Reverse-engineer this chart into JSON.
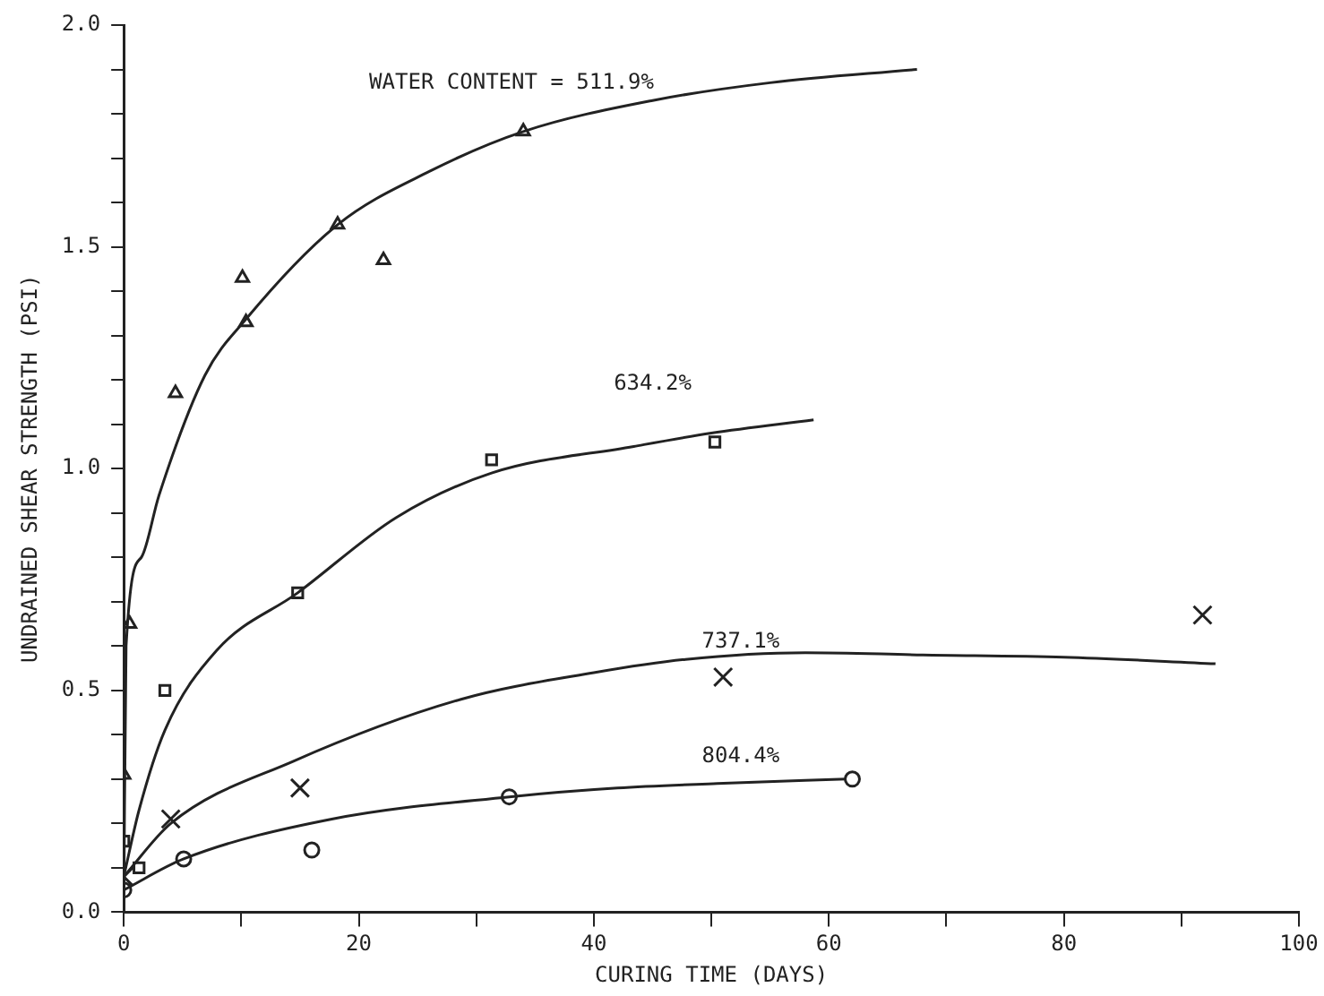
{
  "chart_data": {
    "type": "scatter",
    "xlabel": "CURING TIME (DAYS)",
    "ylabel": "UNDRAINED SHEAR STRENGTH (PSI)",
    "xlim": [
      0,
      100
    ],
    "ylim": [
      0,
      2.0
    ],
    "xticks": [
      0,
      {
        "value": 10,
        "label": null
      },
      20,
      {
        "value": 30,
        "label": null
      },
      40,
      {
        "value": 50,
        "label": null
      },
      60,
      {
        "value": 70,
        "label": null
      },
      80,
      {
        "value": 90,
        "label": null
      },
      100
    ],
    "yticks": [
      {
        "value": 0,
        "label": "0.0"
      },
      {
        "value": 0.1,
        "label": null
      },
      {
        "value": 0.2,
        "label": null
      },
      {
        "value": 0.3,
        "label": null
      },
      {
        "value": 0.4,
        "label": null
      },
      0.5,
      {
        "value": 0.6,
        "label": null
      },
      {
        "value": 0.7,
        "label": null
      },
      {
        "value": 0.8,
        "label": null
      },
      {
        "value": 0.9,
        "label": null
      },
      {
        "value": 1,
        "label": "1.0"
      },
      {
        "value": 1.1,
        "label": null
      },
      {
        "value": 1.2,
        "label": null
      },
      {
        "value": 1.3,
        "label": null
      },
      {
        "value": 1.4,
        "label": null
      },
      1.5,
      {
        "value": 1.6,
        "label": null
      },
      {
        "value": 1.7,
        "label": null
      },
      {
        "value": 1.8,
        "label": null
      },
      {
        "value": 1.9,
        "label": null
      },
      {
        "value": 2,
        "label": "2.0"
      }
    ],
    "grid": false,
    "legend": false,
    "series": [
      {
        "marker": "triangle",
        "color": "#222222",
        "x": [
          0,
          0.5,
          4.4,
          10.1,
          10.4,
          18.2,
          22.1,
          34.0
        ],
        "values": [
          0.31,
          0.65,
          1.17,
          1.43,
          1.33,
          1.55,
          1.47,
          1.76
        ]
      },
      {
        "marker": "square",
        "color": "#222222",
        "x": [
          0,
          1.3,
          3.5,
          14.8,
          31.3,
          50.3
        ],
        "values": [
          0.16,
          0.1,
          0.5,
          0.72,
          1.02,
          1.06
        ]
      },
      {
        "marker": "cross",
        "color": "#222222",
        "x": [
          0,
          4.0,
          15.0,
          51.0,
          91.8
        ],
        "values": [
          0.08,
          0.21,
          0.28,
          0.53,
          0.67
        ]
      },
      {
        "marker": "circle",
        "color": "#222222",
        "x": [
          0,
          5.1,
          16.0,
          32.8,
          62.0
        ],
        "values": [
          0.05,
          0.12,
          0.14,
          0.26,
          0.3
        ]
      },
      {
        "type": "line",
        "name": "WATER CONTENT = 511.9%",
        "line_style": "solid",
        "color": "#222222",
        "x": [
          0,
          0.2,
          1.5,
          3.0,
          6.9,
          10.5,
          18.2,
          26,
          34.0,
          45,
          55,
          67.5
        ],
        "values": [
          0,
          0.6,
          0.8,
          0.94,
          1.21,
          1.34,
          1.55,
          1.67,
          1.76,
          1.83,
          1.87,
          1.9
        ]
      },
      {
        "type": "line",
        "name": "634.2%",
        "line_style": "solid",
        "color": "#222222",
        "x": [
          0,
          1.3,
          3.5,
          7.9,
          14.8,
          23.2,
          31.3,
          43.4,
          50,
          58.7
        ],
        "values": [
          0.08,
          0.23,
          0.41,
          0.59,
          0.72,
          0.89,
          0.99,
          1.05,
          1.08,
          1.11
        ]
      },
      {
        "type": "line",
        "name": "737.1%",
        "line_style": "solid",
        "color": "#222222",
        "x": [
          0,
          4.0,
          14.4,
          28.7,
          40,
          47.8,
          58,
          68,
          80,
          92.9
        ],
        "values": [
          0.08,
          0.2,
          0.34,
          0.48,
          0.54,
          0.57,
          0.585,
          0.58,
          0.575,
          0.56
        ]
      },
      {
        "type": "line",
        "name": "804.4%",
        "line_style": "solid",
        "color": "#222222",
        "x": [
          0,
          5.1,
          17.7,
          32.8,
          42,
          50.5,
          61.5
        ],
        "values": [
          0.05,
          0.12,
          0.21,
          0.26,
          0.28,
          0.29,
          0.3
        ]
      }
    ]
  }
}
